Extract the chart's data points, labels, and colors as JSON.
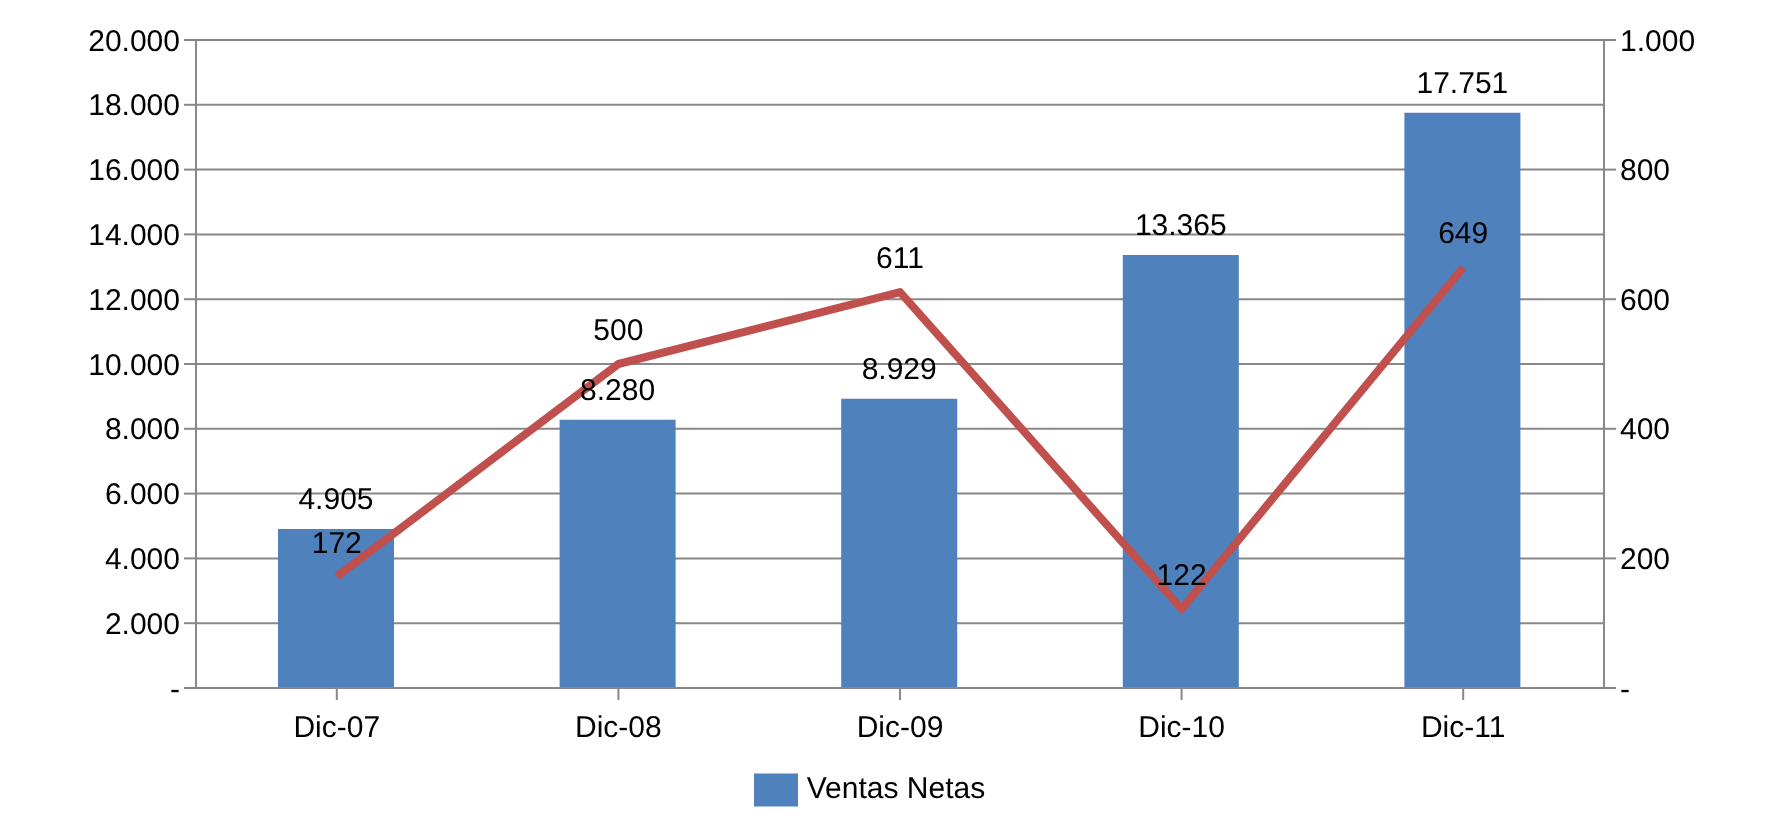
{
  "chart_data": {
    "type": "bar",
    "categories": [
      "Dic-07",
      "Dic-08",
      "Dic-09",
      "Dic-10",
      "Dic-11"
    ],
    "series": [
      {
        "name": "Ventas Netas",
        "color": "#4f81bd",
        "values": [
          4905,
          8280,
          8929,
          13365,
          17751
        ],
        "value_labels": [
          "4.905",
          "8.280",
          "8.929",
          "13.365",
          "17.751"
        ]
      },
      {
        "type": "line",
        "axis": "y2",
        "color": "#c0504d",
        "values": [
          172,
          500,
          611,
          122,
          649
        ],
        "value_labels": [
          "172",
          "500",
          "611",
          "122",
          "649"
        ]
      }
    ],
    "ylim": [
      0,
      20000
    ],
    "yticks": [
      {
        "value": 0,
        "label": "-"
      },
      {
        "value": 2000,
        "label": "2.000"
      },
      {
        "value": 4000,
        "label": "4.000"
      },
      {
        "value": 6000,
        "label": "6.000"
      },
      {
        "value": 8000,
        "label": "8.000"
      },
      {
        "value": 10000,
        "label": "10.000"
      },
      {
        "value": 12000,
        "label": "12.000"
      },
      {
        "value": 14000,
        "label": "14.000"
      },
      {
        "value": 16000,
        "label": "16.000"
      },
      {
        "value": 18000,
        "label": "18.000"
      },
      {
        "value": 20000,
        "label": "20.000"
      }
    ],
    "y2lim": [
      0,
      1000
    ],
    "y2ticks": [
      {
        "value": 0,
        "label": "-"
      },
      200,
      400,
      600,
      800,
      {
        "value": 1000,
        "label": "1.000"
      }
    ],
    "grid": "y",
    "legend": "bottom",
    "marker": "none",
    "line_style": "solid"
  }
}
